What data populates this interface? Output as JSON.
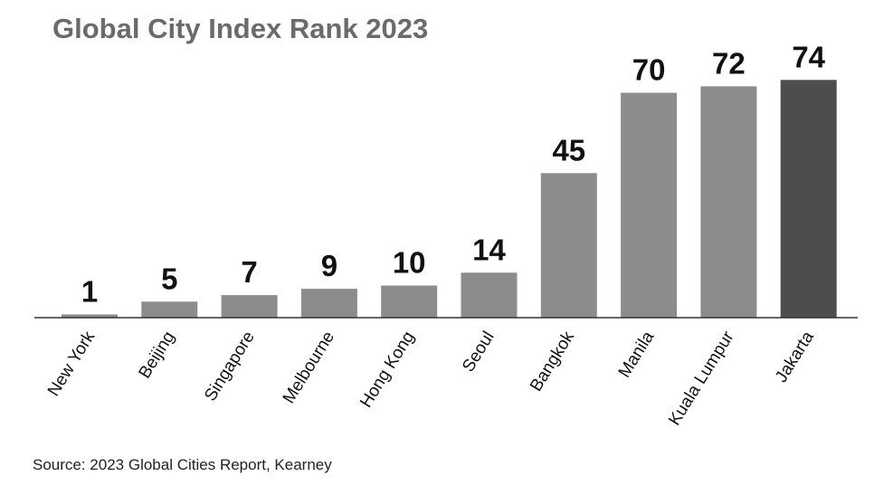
{
  "chart_data": {
    "type": "bar",
    "title": "Global City Index Rank 2023",
    "source": "Source: 2023 Global Cities Report, Kearney",
    "categories": [
      "New York",
      "Beijing",
      "Singapore",
      "Melbourne",
      "Hong Kong",
      "Seoul",
      "Bangkok",
      "Manila",
      "Kuala Lumpur",
      "Jakarta"
    ],
    "values": [
      1,
      5,
      7,
      9,
      10,
      14,
      45,
      70,
      72,
      74
    ],
    "xlabel": "",
    "ylabel": "",
    "ylim": [
      0,
      74
    ],
    "grid": false,
    "legend": "none",
    "colors": {
      "bar": "#8c8c8c",
      "highlight": "#4d4d4d",
      "axis": "#333333",
      "title": "#6b6b6b"
    },
    "highlight_category": "Jakarta"
  }
}
